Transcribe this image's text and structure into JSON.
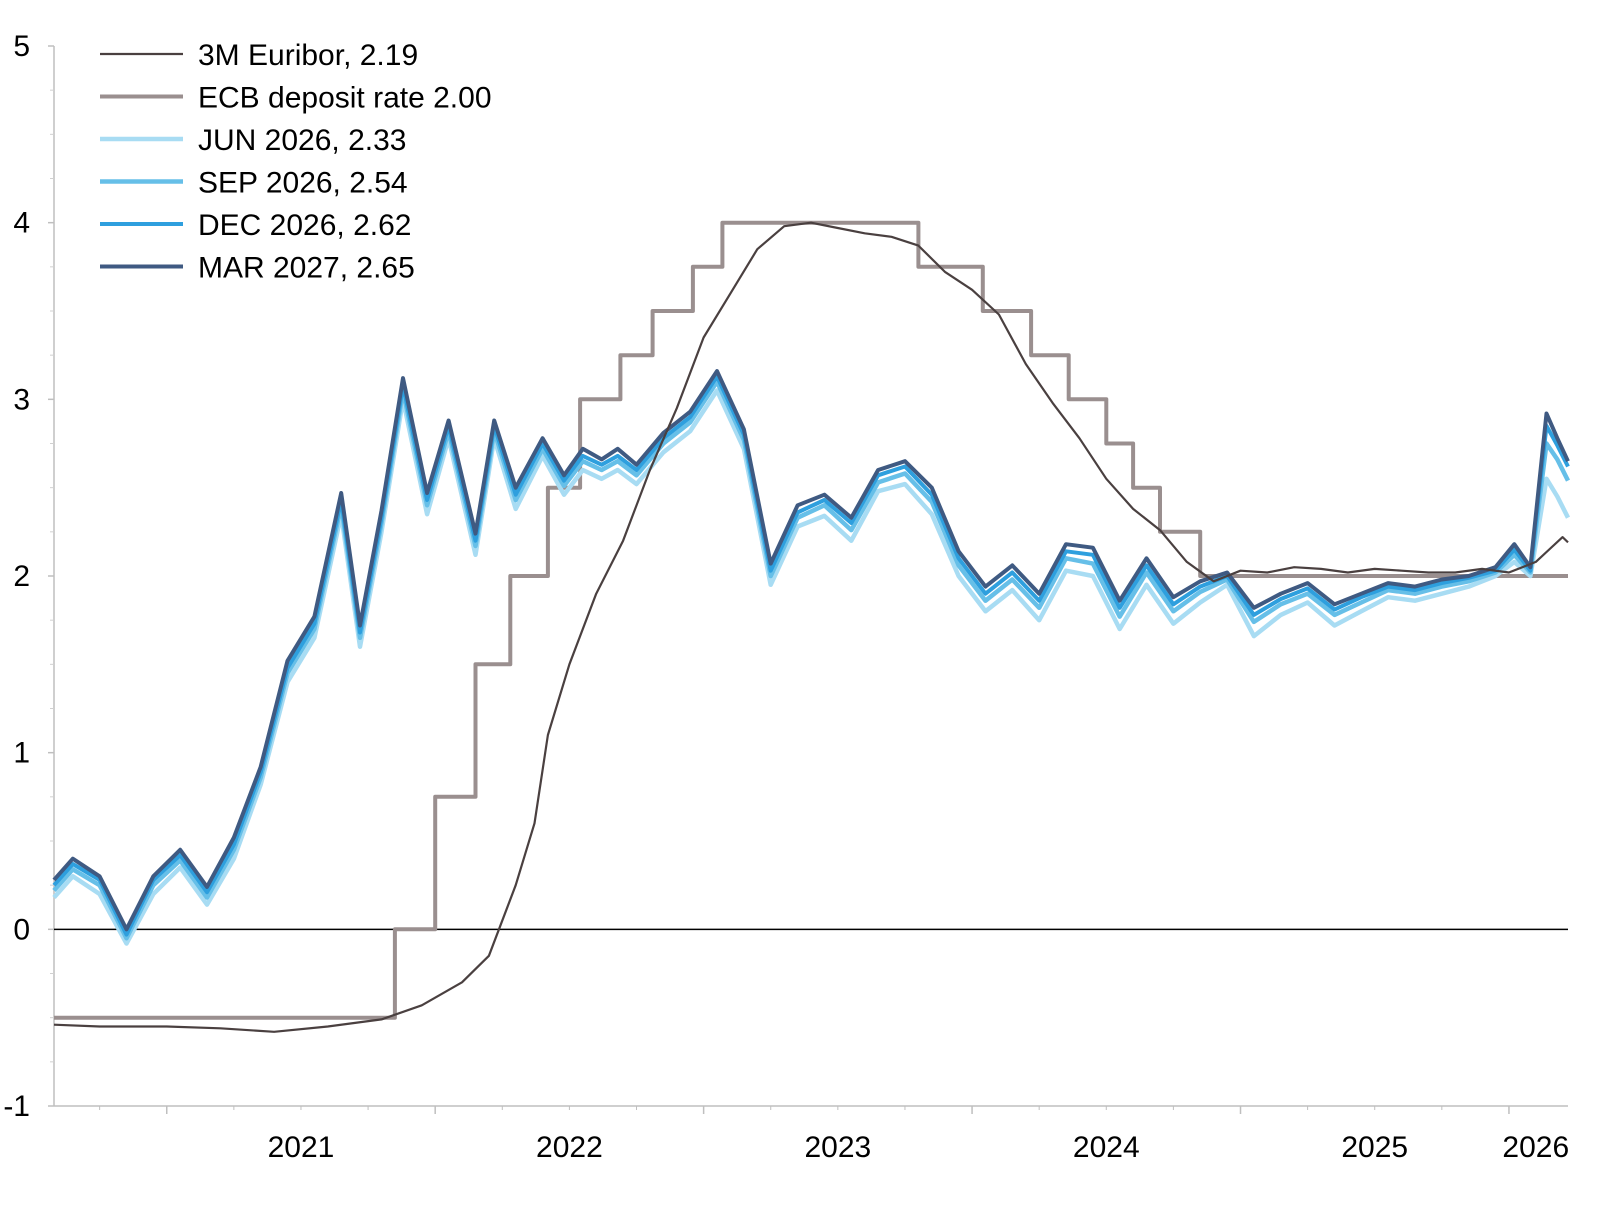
{
  "chart_data": {
    "type": "line",
    "title": "",
    "xlabel": "",
    "ylabel": "",
    "ylim": [
      -1,
      5
    ],
    "yticks": [
      -1,
      0,
      1,
      2,
      3,
      4,
      5
    ],
    "x_range": [
      2020.58,
      2026.22
    ],
    "xtick_labels": [
      {
        "label": "2021",
        "x": 2021.5
      },
      {
        "label": "2022",
        "x": 2022.5
      },
      {
        "label": "2023",
        "x": 2023.5
      },
      {
        "label": "2024",
        "x": 2024.5
      },
      {
        "label": "2025",
        "x": 2025.5
      },
      {
        "label": "2026",
        "x": 2026.1
      }
    ],
    "year_boundaries": [
      2021,
      2022,
      2023,
      2024,
      2025,
      2026
    ],
    "legend_position": "top-left",
    "grid": false,
    "zero_line": true,
    "series": [
      {
        "name": "3M Euribor, 2.19",
        "color": "#4a4040",
        "x": [
          2020.58,
          2020.75,
          2020.9,
          2021.0,
          2021.2,
          2021.4,
          2021.6,
          2021.8,
          2021.95,
          2022.1,
          2022.2,
          2022.3,
          2022.37,
          2022.42,
          2022.5,
          2022.6,
          2022.7,
          2022.8,
          2022.9,
          2023.0,
          2023.1,
          2023.2,
          2023.3,
          2023.4,
          2023.5,
          2023.6,
          2023.7,
          2023.8,
          2023.9,
          2024.0,
          2024.1,
          2024.2,
          2024.3,
          2024.4,
          2024.5,
          2024.6,
          2024.7,
          2024.8,
          2024.9,
          2025.0,
          2025.1,
          2025.2,
          2025.3,
          2025.4,
          2025.5,
          2025.6,
          2025.7,
          2025.8,
          2025.9,
          2026.0,
          2026.1,
          2026.15,
          2026.2,
          2026.22
        ],
        "y": [
          -0.54,
          -0.55,
          -0.55,
          -0.55,
          -0.56,
          -0.58,
          -0.55,
          -0.51,
          -0.43,
          -0.3,
          -0.15,
          0.25,
          0.6,
          1.1,
          1.5,
          1.9,
          2.2,
          2.6,
          2.95,
          3.35,
          3.6,
          3.85,
          3.98,
          4.0,
          3.97,
          3.94,
          3.92,
          3.87,
          3.72,
          3.62,
          3.48,
          3.2,
          2.98,
          2.78,
          2.55,
          2.38,
          2.26,
          2.08,
          1.97,
          2.03,
          2.02,
          2.05,
          2.04,
          2.02,
          2.04,
          2.03,
          2.02,
          2.02,
          2.04,
          2.02,
          2.08,
          2.15,
          2.22,
          2.19
        ]
      },
      {
        "name": "ECB deposit rate 2.00",
        "color": "#9a8f8f",
        "x": [
          2020.58,
          2021.0,
          2021.5,
          2021.85,
          2021.85,
          2022.0,
          2022.0,
          2022.15,
          2022.15,
          2022.28,
          2022.28,
          2022.42,
          2022.42,
          2022.54,
          2022.54,
          2022.69,
          2022.69,
          2022.81,
          2022.81,
          2022.96,
          2022.96,
          2023.07,
          2023.07,
          2023.2,
          2023.2,
          2023.5,
          2023.8,
          2023.8,
          2024.04,
          2024.04,
          2024.22,
          2024.22,
          2024.36,
          2024.36,
          2024.5,
          2024.5,
          2024.6,
          2024.6,
          2024.7,
          2024.7,
          2024.85,
          2024.85,
          2025.4,
          2025.8,
          2026.22
        ],
        "y": [
          -0.5,
          -0.5,
          -0.5,
          -0.5,
          0.0,
          0.0,
          0.75,
          0.75,
          1.5,
          1.5,
          2.0,
          2.0,
          2.5,
          2.5,
          3.0,
          3.0,
          3.25,
          3.25,
          3.5,
          3.5,
          3.75,
          3.75,
          4.0,
          4.0,
          4.0,
          4.0,
          4.0,
          3.75,
          3.75,
          3.5,
          3.5,
          3.25,
          3.25,
          3.0,
          3.0,
          2.75,
          2.75,
          2.5,
          2.5,
          2.25,
          2.25,
          2.0,
          2.0,
          2.0,
          2.0
        ]
      },
      {
        "name": "JUN 2026, 2.33",
        "color": "#a8dcf3",
        "x": [
          2020.58,
          2020.65,
          2020.75,
          2020.85,
          2020.95,
          2021.05,
          2021.15,
          2021.25,
          2021.35,
          2021.45,
          2021.55,
          2021.65,
          2021.72,
          2021.8,
          2021.88,
          2021.97,
          2022.05,
          2022.15,
          2022.22,
          2022.3,
          2022.4,
          2022.48,
          2022.55,
          2022.62,
          2022.68,
          2022.75,
          2022.85,
          2022.95,
          2023.05,
          2023.15,
          2023.25,
          2023.35,
          2023.45,
          2023.55,
          2023.65,
          2023.75,
          2023.85,
          2023.95,
          2024.05,
          2024.15,
          2024.25,
          2024.35,
          2024.45,
          2024.55,
          2024.65,
          2024.75,
          2024.85,
          2024.95,
          2025.05,
          2025.15,
          2025.25,
          2025.35,
          2025.45,
          2025.55,
          2025.65,
          2025.75,
          2025.85,
          2025.95,
          2026.02,
          2026.08,
          2026.14,
          2026.18,
          2026.22
        ],
        "y": [
          0.18,
          0.3,
          0.2,
          -0.08,
          0.2,
          0.35,
          0.14,
          0.4,
          0.82,
          1.4,
          1.65,
          2.35,
          1.6,
          2.25,
          3.0,
          2.35,
          2.78,
          2.12,
          2.78,
          2.38,
          2.68,
          2.46,
          2.6,
          2.55,
          2.6,
          2.52,
          2.7,
          2.82,
          3.05,
          2.72,
          1.95,
          2.28,
          2.34,
          2.2,
          2.48,
          2.52,
          2.35,
          2.0,
          1.8,
          1.92,
          1.75,
          2.03,
          2.0,
          1.7,
          1.95,
          1.73,
          1.85,
          1.95,
          1.66,
          1.78,
          1.85,
          1.72,
          1.8,
          1.88,
          1.86,
          1.9,
          1.94,
          2.0,
          2.08,
          2.0,
          2.55,
          2.45,
          2.33
        ]
      },
      {
        "name": "SEP 2026, 2.54",
        "color": "#66bfe8",
        "x": [
          2020.58,
          2020.65,
          2020.75,
          2020.85,
          2020.95,
          2021.05,
          2021.15,
          2021.25,
          2021.35,
          2021.45,
          2021.55,
          2021.65,
          2021.72,
          2021.8,
          2021.88,
          2021.97,
          2022.05,
          2022.15,
          2022.22,
          2022.3,
          2022.4,
          2022.48,
          2022.55,
          2022.62,
          2022.68,
          2022.75,
          2022.85,
          2022.95,
          2023.05,
          2023.15,
          2023.25,
          2023.35,
          2023.45,
          2023.55,
          2023.65,
          2023.75,
          2023.85,
          2023.95,
          2024.05,
          2024.15,
          2024.25,
          2024.35,
          2024.45,
          2024.55,
          2024.65,
          2024.75,
          2024.85,
          2024.95,
          2025.05,
          2025.15,
          2025.25,
          2025.35,
          2025.45,
          2025.55,
          2025.65,
          2025.75,
          2025.85,
          2025.95,
          2026.02,
          2026.08,
          2026.14,
          2026.18,
          2026.22
        ],
        "y": [
          0.22,
          0.34,
          0.25,
          -0.05,
          0.25,
          0.39,
          0.18,
          0.45,
          0.86,
          1.45,
          1.7,
          2.4,
          1.65,
          2.3,
          3.05,
          2.4,
          2.82,
          2.17,
          2.82,
          2.43,
          2.72,
          2.51,
          2.65,
          2.6,
          2.65,
          2.57,
          2.75,
          2.87,
          3.1,
          2.77,
          2.0,
          2.33,
          2.4,
          2.26,
          2.53,
          2.58,
          2.42,
          2.06,
          1.86,
          1.98,
          1.82,
          2.1,
          2.07,
          1.77,
          2.02,
          1.8,
          1.91,
          1.98,
          1.74,
          1.84,
          1.9,
          1.78,
          1.85,
          1.92,
          1.9,
          1.94,
          1.97,
          2.02,
          2.12,
          2.02,
          2.75,
          2.66,
          2.54
        ]
      },
      {
        "name": "DEC 2026, 2.62",
        "color": "#2e9fde",
        "x": [
          2020.58,
          2020.65,
          2020.75,
          2020.85,
          2020.95,
          2021.05,
          2021.15,
          2021.25,
          2021.35,
          2021.45,
          2021.55,
          2021.65,
          2021.72,
          2021.8,
          2021.88,
          2021.97,
          2022.05,
          2022.15,
          2022.22,
          2022.3,
          2022.4,
          2022.48,
          2022.55,
          2022.62,
          2022.68,
          2022.75,
          2022.85,
          2022.95,
          2023.05,
          2023.15,
          2023.25,
          2023.35,
          2023.45,
          2023.55,
          2023.65,
          2023.75,
          2023.85,
          2023.95,
          2024.05,
          2024.15,
          2024.25,
          2024.35,
          2024.45,
          2024.55,
          2024.65,
          2024.75,
          2024.85,
          2024.95,
          2025.05,
          2025.15,
          2025.25,
          2025.35,
          2025.45,
          2025.55,
          2025.65,
          2025.75,
          2025.85,
          2025.95,
          2026.02,
          2026.08,
          2026.14,
          2026.18,
          2026.22
        ],
        "y": [
          0.25,
          0.37,
          0.28,
          -0.03,
          0.28,
          0.42,
          0.21,
          0.48,
          0.89,
          1.48,
          1.73,
          2.43,
          1.68,
          2.33,
          3.08,
          2.43,
          2.85,
          2.2,
          2.85,
          2.46,
          2.75,
          2.54,
          2.68,
          2.63,
          2.68,
          2.6,
          2.78,
          2.9,
          3.13,
          2.8,
          2.03,
          2.36,
          2.43,
          2.3,
          2.57,
          2.62,
          2.46,
          2.1,
          1.9,
          2.02,
          1.86,
          2.14,
          2.12,
          1.82,
          2.06,
          1.84,
          1.94,
          2.0,
          1.78,
          1.87,
          1.93,
          1.81,
          1.88,
          1.94,
          1.92,
          1.96,
          1.99,
          2.03,
          2.15,
          2.03,
          2.85,
          2.74,
          2.62
        ]
      },
      {
        "name": "MAR 2027, 2.65",
        "color": "#3f5a82",
        "x": [
          2020.58,
          2020.65,
          2020.75,
          2020.85,
          2020.95,
          2021.05,
          2021.15,
          2021.25,
          2021.35,
          2021.45,
          2021.55,
          2021.65,
          2021.72,
          2021.8,
          2021.88,
          2021.97,
          2022.05,
          2022.15,
          2022.22,
          2022.3,
          2022.4,
          2022.48,
          2022.55,
          2022.62,
          2022.68,
          2022.75,
          2022.85,
          2022.95,
          2023.05,
          2023.15,
          2023.25,
          2023.35,
          2023.45,
          2023.55,
          2023.65,
          2023.75,
          2023.85,
          2023.95,
          2024.05,
          2024.15,
          2024.25,
          2024.35,
          2024.45,
          2024.55,
          2024.65,
          2024.75,
          2024.85,
          2024.95,
          2025.05,
          2025.15,
          2025.25,
          2025.35,
          2025.45,
          2025.55,
          2025.65,
          2025.75,
          2025.85,
          2025.95,
          2026.02,
          2026.08,
          2026.14,
          2026.18,
          2026.22
        ],
        "y": [
          0.28,
          0.4,
          0.3,
          0.0,
          0.3,
          0.45,
          0.24,
          0.52,
          0.92,
          1.52,
          1.77,
          2.47,
          1.72,
          2.37,
          3.12,
          2.47,
          2.88,
          2.24,
          2.88,
          2.5,
          2.78,
          2.57,
          2.72,
          2.66,
          2.72,
          2.63,
          2.81,
          2.93,
          3.16,
          2.83,
          2.07,
          2.4,
          2.46,
          2.33,
          2.6,
          2.65,
          2.5,
          2.14,
          1.94,
          2.06,
          1.9,
          2.18,
          2.16,
          1.86,
          2.1,
          1.88,
          1.97,
          2.02,
          1.82,
          1.9,
          1.96,
          1.84,
          1.9,
          1.96,
          1.94,
          1.98,
          2.0,
          2.05,
          2.18,
          2.05,
          2.92,
          2.78,
          2.65
        ]
      }
    ]
  }
}
